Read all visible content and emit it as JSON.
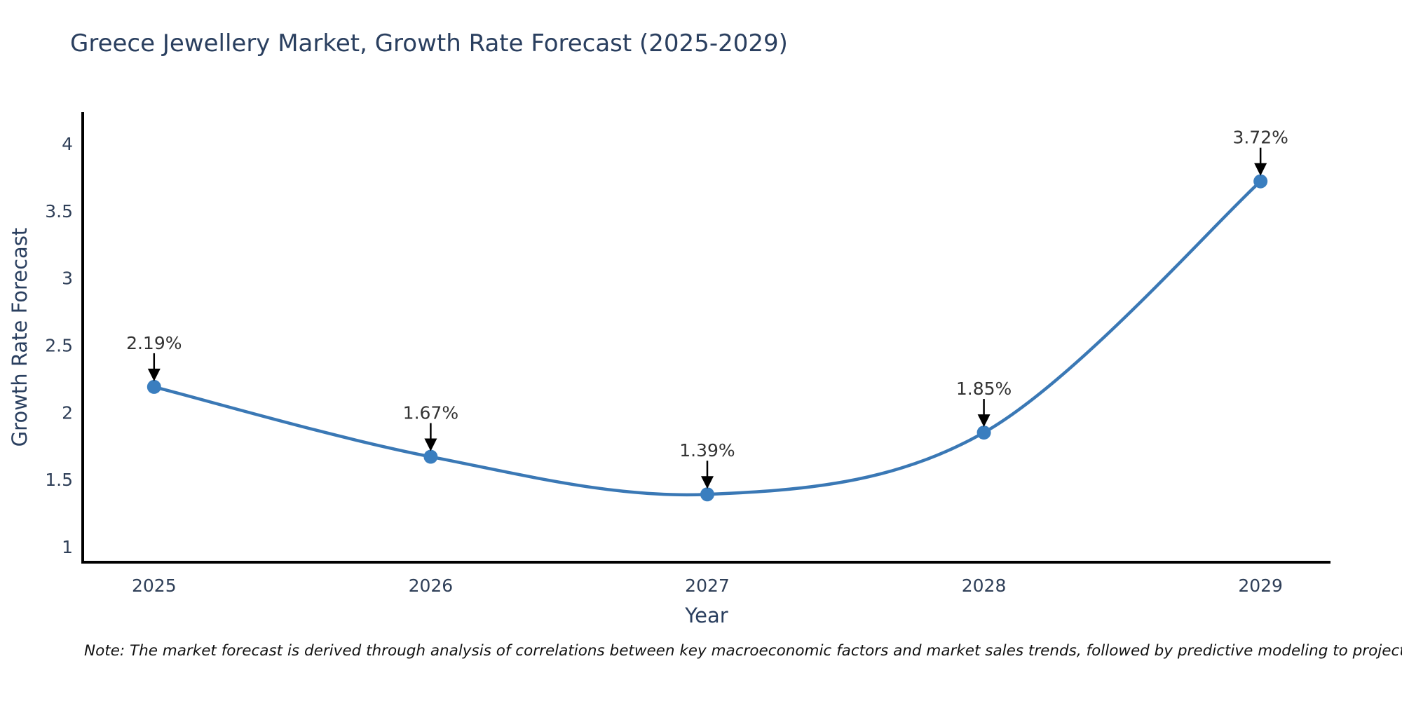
{
  "title": "Greece Jewellery Market, Growth Rate Forecast (2025-2029)",
  "note": "Note: The market forecast is derived through analysis of correlations between key macroeconomic factors and market sales trends, followed by predictive modeling to project future sales",
  "colors": {
    "title_text": "#2a3f5f",
    "tick_text": "#2f3f58",
    "axis_title_text": "#2a3f5f",
    "axis_line": "#000000",
    "series_line": "#3a78b5",
    "marker_fill": "#3a7ebf",
    "annotation_text": "#333333",
    "annotation_arrow": "#000000",
    "background": "#ffffff"
  },
  "chart_data": {
    "type": "line",
    "title": "Greece Jewellery Market, Growth Rate Forecast (2025-2029)",
    "xlabel": "Year",
    "ylabel": "Growth Rate Forecast",
    "x": [
      2025,
      2026,
      2027,
      2028,
      2029
    ],
    "values": [
      2.19,
      1.67,
      1.39,
      1.85,
      3.72
    ],
    "point_labels": [
      "2.19%",
      "1.67%",
      "1.39%",
      "1.85%",
      "3.72%"
    ],
    "xticks": [
      "2025",
      "2026",
      "2027",
      "2028",
      "2029"
    ],
    "yticks": [
      1,
      1.5,
      2,
      2.5,
      3,
      3.5,
      4
    ],
    "ytick_labels": [
      "1",
      "1.5",
      "2",
      "2.5",
      "3",
      "3.5",
      "4"
    ],
    "xlim": [
      2024.742,
      2029.253
    ],
    "ylim": [
      0.885,
      4.235
    ],
    "grid": false,
    "legend": "none",
    "line_shape": "spline",
    "annotations": "value labels with downward black arrows above each point"
  }
}
